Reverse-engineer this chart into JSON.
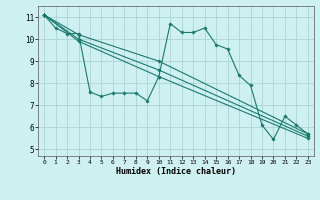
{
  "title": "",
  "xlabel": "Humidex (Indice chaleur)",
  "xlim": [
    -0.5,
    23.5
  ],
  "ylim": [
    4.7,
    11.5
  ],
  "xticks": [
    0,
    1,
    2,
    3,
    4,
    5,
    6,
    7,
    8,
    9,
    10,
    11,
    12,
    13,
    14,
    15,
    16,
    17,
    18,
    19,
    20,
    21,
    22,
    23
  ],
  "yticks": [
    5,
    6,
    7,
    8,
    9,
    10,
    11
  ],
  "bg_color": "#cff0f0",
  "grid_color": "#b0d8d4",
  "line_color": "#1a7a6e",
  "lines": [
    {
      "x": [
        0,
        1,
        2,
        3,
        4,
        5,
        6,
        7,
        8,
        9,
        10,
        11,
        12,
        13,
        14,
        15,
        16,
        17,
        18,
        19,
        20,
        21,
        22,
        23
      ],
      "y": [
        11.1,
        10.5,
        10.25,
        10.25,
        7.6,
        7.4,
        7.55,
        7.55,
        7.55,
        7.2,
        8.3,
        10.7,
        10.3,
        10.3,
        10.5,
        9.75,
        9.55,
        8.35,
        7.9,
        6.1,
        5.45,
        6.5,
        6.1,
        5.7
      ]
    },
    {
      "x": [
        0,
        3,
        10,
        23
      ],
      "y": [
        11.1,
        10.2,
        9.0,
        5.7
      ]
    },
    {
      "x": [
        0,
        3,
        10,
        23
      ],
      "y": [
        11.1,
        10.0,
        8.6,
        5.6
      ]
    },
    {
      "x": [
        0,
        3,
        10,
        23
      ],
      "y": [
        11.1,
        9.9,
        8.3,
        5.5
      ]
    }
  ]
}
